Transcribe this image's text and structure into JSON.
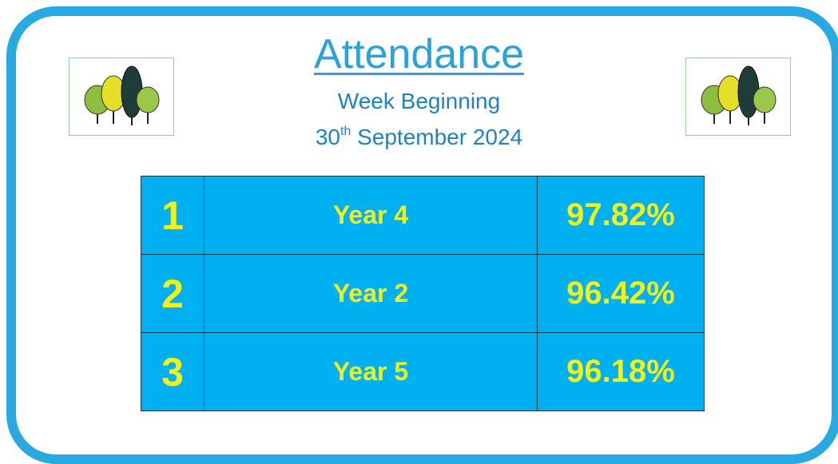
{
  "header": {
    "title": "Attendance",
    "subtitle": "Week Beginning",
    "date": {
      "day": "30",
      "suffix": "th",
      "rest": "September 2024"
    }
  },
  "table": {
    "rows": [
      [
        "1",
        "Year 4",
        "97.82%"
      ],
      [
        "2",
        "Year 2",
        "96.42%"
      ],
      [
        "3",
        "Year 5",
        "96.18%"
      ]
    ]
  }
}
